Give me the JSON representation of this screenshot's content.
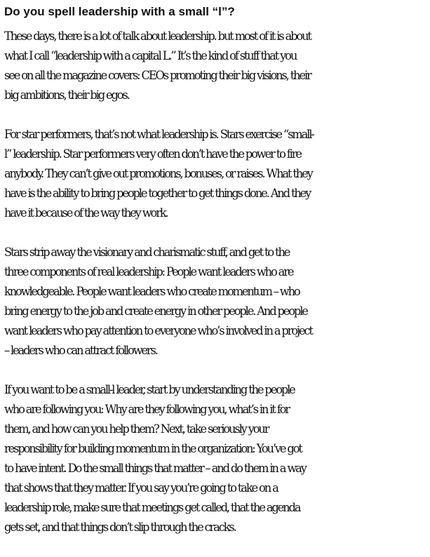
{
  "heading": "Do you spell leadership with a small “l”?",
  "paragraphs": [
    [
      "These days, there is a lot of talk about leadership. but most of it is about",
      "what I call “leadership with a capital L.” It’s the kind of stuff that you",
      "see on all the magazine covers: CEOs promoting their big visions, their",
      "big ambitions, their big egos."
    ],
    [
      "For star performers, that’s not what leadership is. Stars exercise “small-",
      "l” leadership. Star performers very often don’t have the power to fire",
      "anybody. They can’t give out promotions, bonuses, or raises. What they",
      "have is the ability to bring people together to get things done. And they",
      "have it because of the way they work."
    ],
    [
      "Stars strip away the visionary and charismatic stuff, and get to the",
      "three components of real leadership: People want leaders who are",
      "knowledgeable. People want leaders who create momentum – who",
      "bring energy to the job and create energy in other people. And people",
      "want leaders who pay attention to everyone who’s involved in a project",
      "– leaders who can attract followers."
    ],
    [
      "If you want to be a small-l leader, start by understanding the people",
      "who are following you: Why are they following you, what’s in it for",
      "them, and how can you help them? Next, take seriously your",
      "responsibility for building momentum in the organization: You’ve got",
      "to have intent. Do the small things that matter – and do them in a way",
      "that shows that they matter. If you say you’re going to take on a",
      "leadership role, make sure that meetings get called, that the agenda",
      "gets set, and that things don’t slip through the cracks."
    ]
  ]
}
